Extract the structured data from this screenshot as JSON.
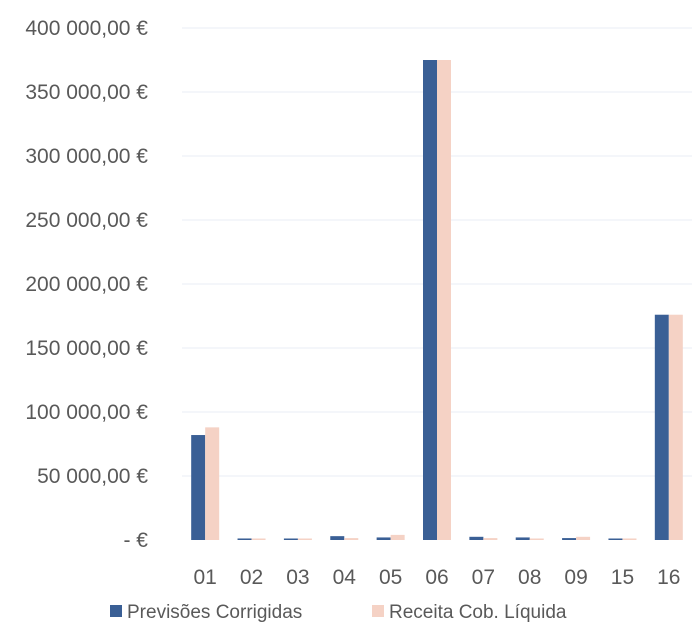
{
  "chart_data": {
    "type": "bar",
    "categories": [
      "01",
      "02",
      "03",
      "04",
      "05",
      "06",
      "07",
      "08",
      "09",
      "15",
      "16"
    ],
    "series": [
      {
        "name": "Previsões Corrigidas",
        "values": [
          82000,
          1200,
          1000,
          3000,
          2000,
          375000,
          2500,
          2000,
          1500,
          1000,
          176000
        ],
        "color": "#3A5F95"
      },
      {
        "name": "Receita Cob. Líquida",
        "values": [
          88000,
          500,
          600,
          1500,
          4000,
          375000,
          1500,
          1000,
          2500,
          1200,
          176000
        ],
        "color": "#F5D2C5"
      }
    ],
    "yticks": [
      "400 000,00 €",
      "350 000,00 €",
      "300 000,00 €",
      "250 000,00 €",
      "200 000,00 €",
      "150 000,00 €",
      "100 000,00 €",
      "50 000,00 €",
      "-   €"
    ],
    "ytick_values": [
      400000,
      350000,
      300000,
      250000,
      200000,
      150000,
      100000,
      50000,
      0
    ],
    "ylim": [
      0,
      400000
    ],
    "grid": true,
    "legend_position": "bottom"
  }
}
